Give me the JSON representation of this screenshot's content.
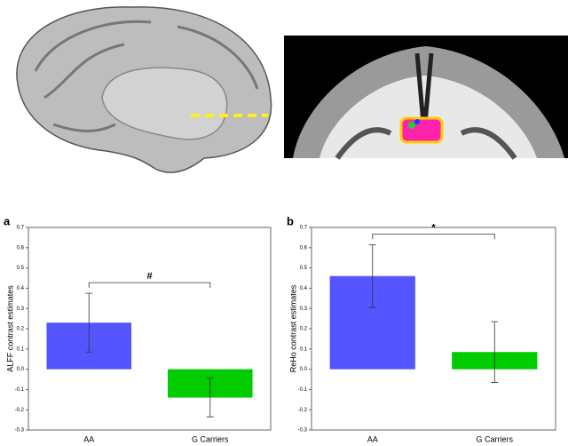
{
  "chart_data": [
    {
      "type": "bar",
      "panel": "a",
      "y_label": "ALFF contrast estimates",
      "categories": [
        "AA",
        "G Carriers"
      ],
      "values": [
        0.23,
        -0.14
      ],
      "errors": [
        0.145,
        0.095
      ],
      "colors": [
        "#5555ff",
        "#00cc00"
      ],
      "annotation": "#",
      "ylim": [
        -0.3,
        0.7
      ],
      "yticks": [
        -0.3,
        -0.2,
        -0.1,
        {
          "value": 0,
          "label": "0.0"
        },
        0.1,
        0.2,
        0.3,
        0.4,
        0.5,
        0.6,
        0.7
      ]
    },
    {
      "type": "bar",
      "panel": "b",
      "y_label": "ReHo contrast estimates",
      "categories": [
        "AA",
        "G Carriers"
      ],
      "values": [
        0.46,
        0.085
      ],
      "errors": [
        0.155,
        0.15
      ],
      "colors": [
        "#5555ff",
        "#00cc00"
      ],
      "annotation": "*",
      "ylim": [
        -0.3,
        0.7
      ],
      "yticks": [
        -0.3,
        -0.2,
        -0.1,
        {
          "value": 0,
          "label": "0.0"
        },
        0.1,
        0.2,
        0.3,
        0.4,
        0.5,
        0.6,
        0.7
      ]
    }
  ]
}
